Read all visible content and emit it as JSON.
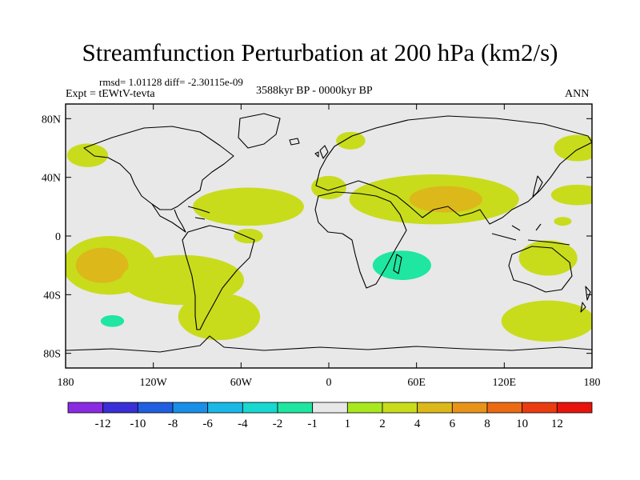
{
  "chart_data": {
    "type": "heatmap",
    "title": "Streamfunction Perturbation at 200 hPa (km2/s)",
    "stats_text": "rmsd= 1.01128  diff= -2.30115e-09",
    "left_label": "Expt = tEWtV-tevta",
    "center_label": "3588kyr BP - 0000kyr BP",
    "right_label": "ANN",
    "x_range": [
      -180,
      180
    ],
    "y_range": [
      -90,
      90
    ],
    "x_ticks": [
      {
        "value": -180,
        "label": "180"
      },
      {
        "value": -120,
        "label": "120W"
      },
      {
        "value": -60,
        "label": "60W"
      },
      {
        "value": 0,
        "label": "0"
      },
      {
        "value": 60,
        "label": "60E"
      },
      {
        "value": 120,
        "label": "120E"
      },
      {
        "value": 180,
        "label": "180"
      }
    ],
    "y_ticks": [
      {
        "value": 80,
        "label": "80N"
      },
      {
        "value": 40,
        "label": "40N"
      },
      {
        "value": 0,
        "label": "0"
      },
      {
        "value": -40,
        "label": "40S"
      },
      {
        "value": -80,
        "label": "80S"
      }
    ],
    "colorbar": {
      "colors": [
        "#8a2be2",
        "#3a2fd6",
        "#1f5fe0",
        "#1a8fe8",
        "#1ab8e6",
        "#18d8d0",
        "#1fe6a0",
        "#e8e8e8",
        "#a8e81e",
        "#c8dc1c",
        "#dcb81a",
        "#e8941a",
        "#ec6a14",
        "#ea3c10",
        "#e8140c"
      ],
      "labels": [
        "-12",
        "-10",
        "-8",
        "-6",
        "-4",
        "-2",
        "-1",
        "1",
        "2",
        "4",
        "6",
        "8",
        "10",
        "12"
      ]
    },
    "anomaly_regions": [
      {
        "lon": 170,
        "lat": 60,
        "rlon": 16,
        "rlat": 9,
        "level": 2
      },
      {
        "lon": -165,
        "lat": 55,
        "rlon": 14,
        "rlat": 8,
        "level": 2
      },
      {
        "lon": -112,
        "lat": 60,
        "rlon": 30,
        "rlat": 18,
        "level": -1
      },
      {
        "lon": -160,
        "lat": 25,
        "rlon": 40,
        "rlat": 12,
        "level": -1
      },
      {
        "lon": -100,
        "lat": 20,
        "rlon": 22,
        "rlat": 12,
        "level": -1
      },
      {
        "lon": -55,
        "lat": 20,
        "rlon": 38,
        "rlat": 13,
        "level": 2
      },
      {
        "lon": -55,
        "lat": 0,
        "rlon": 10,
        "rlat": 5,
        "level": 2
      },
      {
        "lon": 15,
        "lat": 65,
        "rlon": 10,
        "rlat": 6,
        "level": 2
      },
      {
        "lon": 30,
        "lat": 48,
        "rlon": 10,
        "rlat": 5,
        "level": -1
      },
      {
        "lon": 0,
        "lat": 33,
        "rlon": 12,
        "rlat": 8,
        "level": 2
      },
      {
        "lon": 72,
        "lat": 25,
        "rlon": 58,
        "rlat": 17,
        "level": 2
      },
      {
        "lon": 80,
        "lat": 25,
        "rlon": 25,
        "rlat": 9,
        "level": 4
      },
      {
        "lon": 170,
        "lat": 28,
        "rlon": 18,
        "rlat": 7,
        "level": 2
      },
      {
        "lon": 160,
        "lat": 10,
        "rlon": 6,
        "rlat": 3,
        "level": 2
      },
      {
        "lon": -150,
        "lat": -20,
        "rlon": 32,
        "rlat": 20,
        "level": 2
      },
      {
        "lon": -155,
        "lat": -20,
        "rlon": 18,
        "rlat": 12,
        "level": 4
      },
      {
        "lon": -100,
        "lat": -30,
        "rlon": 42,
        "rlat": 17,
        "level": 2
      },
      {
        "lon": -75,
        "lat": -55,
        "rlon": 28,
        "rlat": 16,
        "level": 2
      },
      {
        "lon": -140,
        "lat": -57,
        "rlon": 27,
        "rlat": 14,
        "level": -1
      },
      {
        "lon": -148,
        "lat": -58,
        "rlon": 8,
        "rlat": 4,
        "level": -2
      },
      {
        "lon": -25,
        "lat": -52,
        "rlon": 17,
        "rlat": 11,
        "level": -1
      },
      {
        "lon": 40,
        "lat": -20,
        "rlon": 48,
        "rlat": 18,
        "level": -1
      },
      {
        "lon": 50,
        "lat": -20,
        "rlon": 20,
        "rlat": 10,
        "level": -2
      },
      {
        "lon": 150,
        "lat": -15,
        "rlon": 20,
        "rlat": 12,
        "level": 2
      },
      {
        "lon": 150,
        "lat": -58,
        "rlon": 32,
        "rlat": 14,
        "level": 2
      }
    ]
  }
}
